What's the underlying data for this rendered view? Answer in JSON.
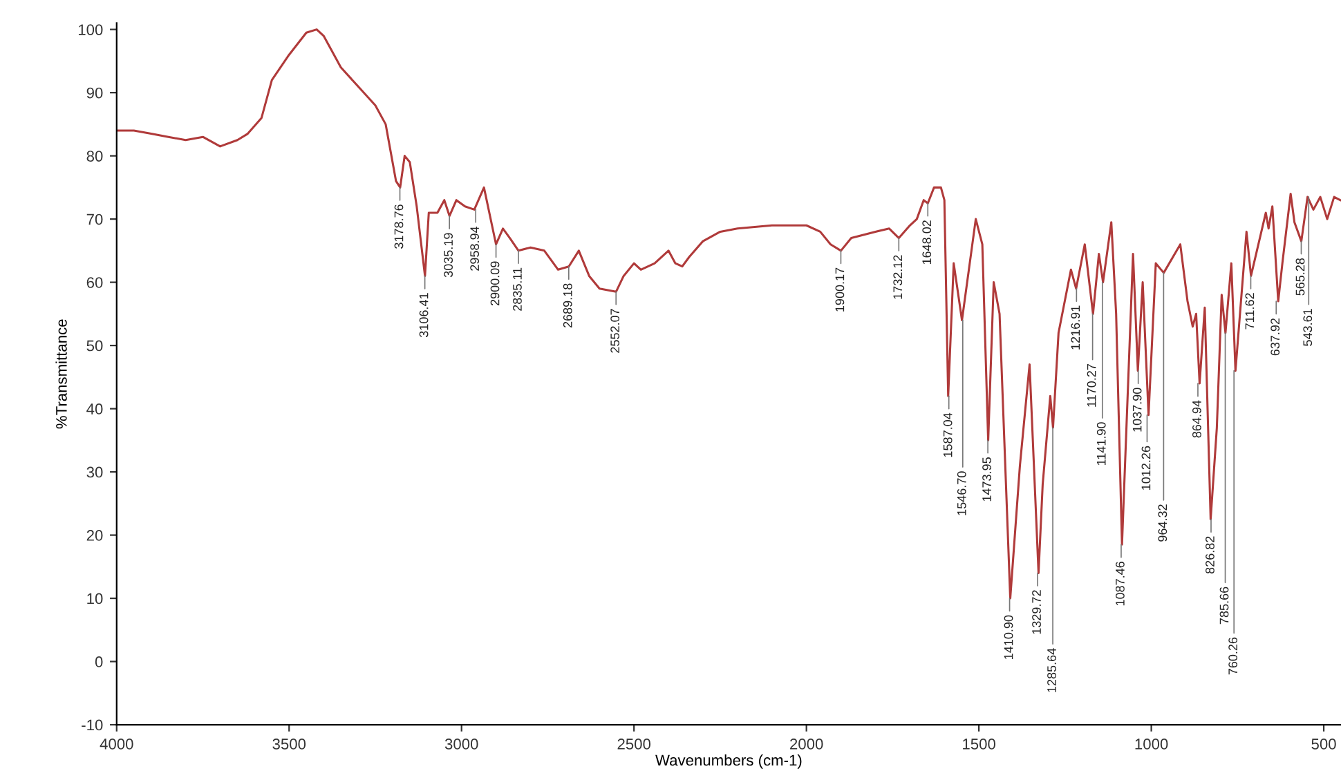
{
  "chart_data": {
    "type": "line",
    "xlabel": "Wavenumbers (cm-1)",
    "ylabel": "%Transmittance",
    "xlim": [
      4000,
      450
    ],
    "xticks": [
      4000,
      3500,
      3000,
      2500,
      2000,
      1500,
      1000,
      500
    ],
    "ylim": [
      -10,
      101
    ],
    "yticks": [
      -10,
      0,
      10,
      20,
      30,
      40,
      50,
      60,
      70,
      80,
      90,
      100
    ],
    "grid": false,
    "legend": false,
    "marker": "none",
    "line_style": "solid",
    "series": [
      {
        "color": "#b03a3a",
        "x": [
          4000,
          3950,
          3900,
          3850,
          3800,
          3750,
          3700,
          3650,
          3620,
          3580,
          3550,
          3500,
          3450,
          3420,
          3400,
          3380,
          3350,
          3300,
          3250,
          3220,
          3190,
          3178,
          3165,
          3150,
          3130,
          3106,
          3095,
          3070,
          3050,
          3035,
          3015,
          2990,
          2963,
          2935,
          2900,
          2880,
          2860,
          2835,
          2800,
          2760,
          2720,
          2689,
          2660,
          2630,
          2600,
          2552,
          2530,
          2500,
          2480,
          2440,
          2400,
          2380,
          2360,
          2340,
          2300,
          2250,
          2200,
          2100,
          2000,
          1960,
          1930,
          1900,
          1870,
          1800,
          1760,
          1732,
          1700,
          1680,
          1660,
          1648,
          1630,
          1610,
          1600,
          1589,
          1573,
          1549,
          1509,
          1490,
          1473,
          1457,
          1440,
          1409,
          1381,
          1353,
          1327,
          1315,
          1293,
          1285,
          1269,
          1233,
          1218,
          1193,
          1169,
          1152,
          1140,
          1116,
          1102,
          1085,
          1053,
          1039,
          1025,
          1008,
          987,
          964,
          916,
          895,
          880,
          870,
          860,
          845,
          828,
          810,
          796,
          785,
          768,
          756,
          724,
          711,
          668,
          660,
          649,
          632,
          620,
          596,
          585,
          565,
          547,
          530,
          510,
          490,
          470,
          452
        ],
        "values": [
          84,
          84,
          83.5,
          83,
          82.5,
          83,
          81.5,
          82.5,
          83.5,
          86,
          92,
          96,
          99.5,
          100,
          99,
          97,
          94,
          91,
          88,
          85,
          76,
          75,
          80,
          79,
          72,
          61,
          71,
          71,
          73,
          70.5,
          73,
          72,
          71.5,
          75,
          66,
          68.5,
          67,
          65,
          65.5,
          65,
          62,
          62.5,
          65,
          61,
          59,
          58.5,
          61,
          63,
          62,
          63,
          65,
          63,
          62.5,
          64,
          66.5,
          68,
          68.5,
          69,
          69,
          68,
          66,
          65,
          67,
          68,
          68.5,
          67,
          69,
          70,
          73,
          72.5,
          75,
          75,
          73,
          42,
          63,
          54,
          70,
          66,
          35,
          60,
          55,
          10,
          31,
          47,
          14,
          28,
          42,
          37,
          52,
          62,
          59,
          66,
          55,
          64.5,
          60,
          69.5,
          55,
          18.5,
          64.5,
          46,
          60,
          39,
          63,
          61.5,
          66,
          57,
          53,
          55,
          44,
          56,
          22.5,
          37,
          58,
          52,
          63,
          46,
          68,
          61,
          71,
          68.5,
          72,
          57,
          63,
          74,
          69.5,
          66.5,
          73.5,
          71.5,
          73.5,
          70,
          73.5,
          73
        ]
      }
    ],
    "annotations": [
      {
        "text": "3178.76",
        "x": 3178.76,
        "y": 75
      },
      {
        "text": "3106.41",
        "x": 3106.41,
        "y": 61
      },
      {
        "text": "3035.19",
        "x": 3035.19,
        "y": 70.5
      },
      {
        "text": "2958.94",
        "x": 2958.94,
        "y": 71.5
      },
      {
        "text": "2900.09",
        "x": 2900.09,
        "y": 66
      },
      {
        "text": "2835.11",
        "x": 2835.11,
        "y": 65
      },
      {
        "text": "2689.18",
        "x": 2689.18,
        "y": 62.5
      },
      {
        "text": "2552.07",
        "x": 2552.07,
        "y": 58.5
      },
      {
        "text": "1900.17",
        "x": 1900.17,
        "y": 65
      },
      {
        "text": "1732.12",
        "x": 1732.12,
        "y": 67
      },
      {
        "text": "1648.02",
        "x": 1648.02,
        "y": 72.5
      },
      {
        "text": "1587.04",
        "x": 1587.04,
        "y": 42
      },
      {
        "text": "1546.70",
        "x": 1546.7,
        "y": 54
      },
      {
        "text": "1473.95",
        "x": 1473.95,
        "y": 35
      },
      {
        "text": "1410.90",
        "x": 1410.9,
        "y": 10
      },
      {
        "text": "1329.72",
        "x": 1329.72,
        "y": 14
      },
      {
        "text": "1285.64",
        "x": 1285.64,
        "y": 37
      },
      {
        "text": "1216.91",
        "x": 1216.91,
        "y": 59
      },
      {
        "text": "1170.27",
        "x": 1170.27,
        "y": 55
      },
      {
        "text": "1141.90",
        "x": 1141.9,
        "y": 60
      },
      {
        "text": "1087.46",
        "x": 1087.46,
        "y": 18.5
      },
      {
        "text": "1037.90",
        "x": 1037.9,
        "y": 46
      },
      {
        "text": "1012.26",
        "x": 1012.26,
        "y": 39
      },
      {
        "text": "964.32",
        "x": 964.32,
        "y": 61.5
      },
      {
        "text": "864.94",
        "x": 864.94,
        "y": 44
      },
      {
        "text": "826.82",
        "x": 826.82,
        "y": 22.5
      },
      {
        "text": "785.66",
        "x": 785.66,
        "y": 52
      },
      {
        "text": "760.26",
        "x": 760.26,
        "y": 46
      },
      {
        "text": "711.62",
        "x": 711.62,
        "y": 61
      },
      {
        "text": "637.92",
        "x": 637.92,
        "y": 57
      },
      {
        "text": "565.28",
        "x": 565.28,
        "y": 66.5
      },
      {
        "text": "543.61",
        "x": 543.61,
        "y": 73.5
      }
    ]
  }
}
